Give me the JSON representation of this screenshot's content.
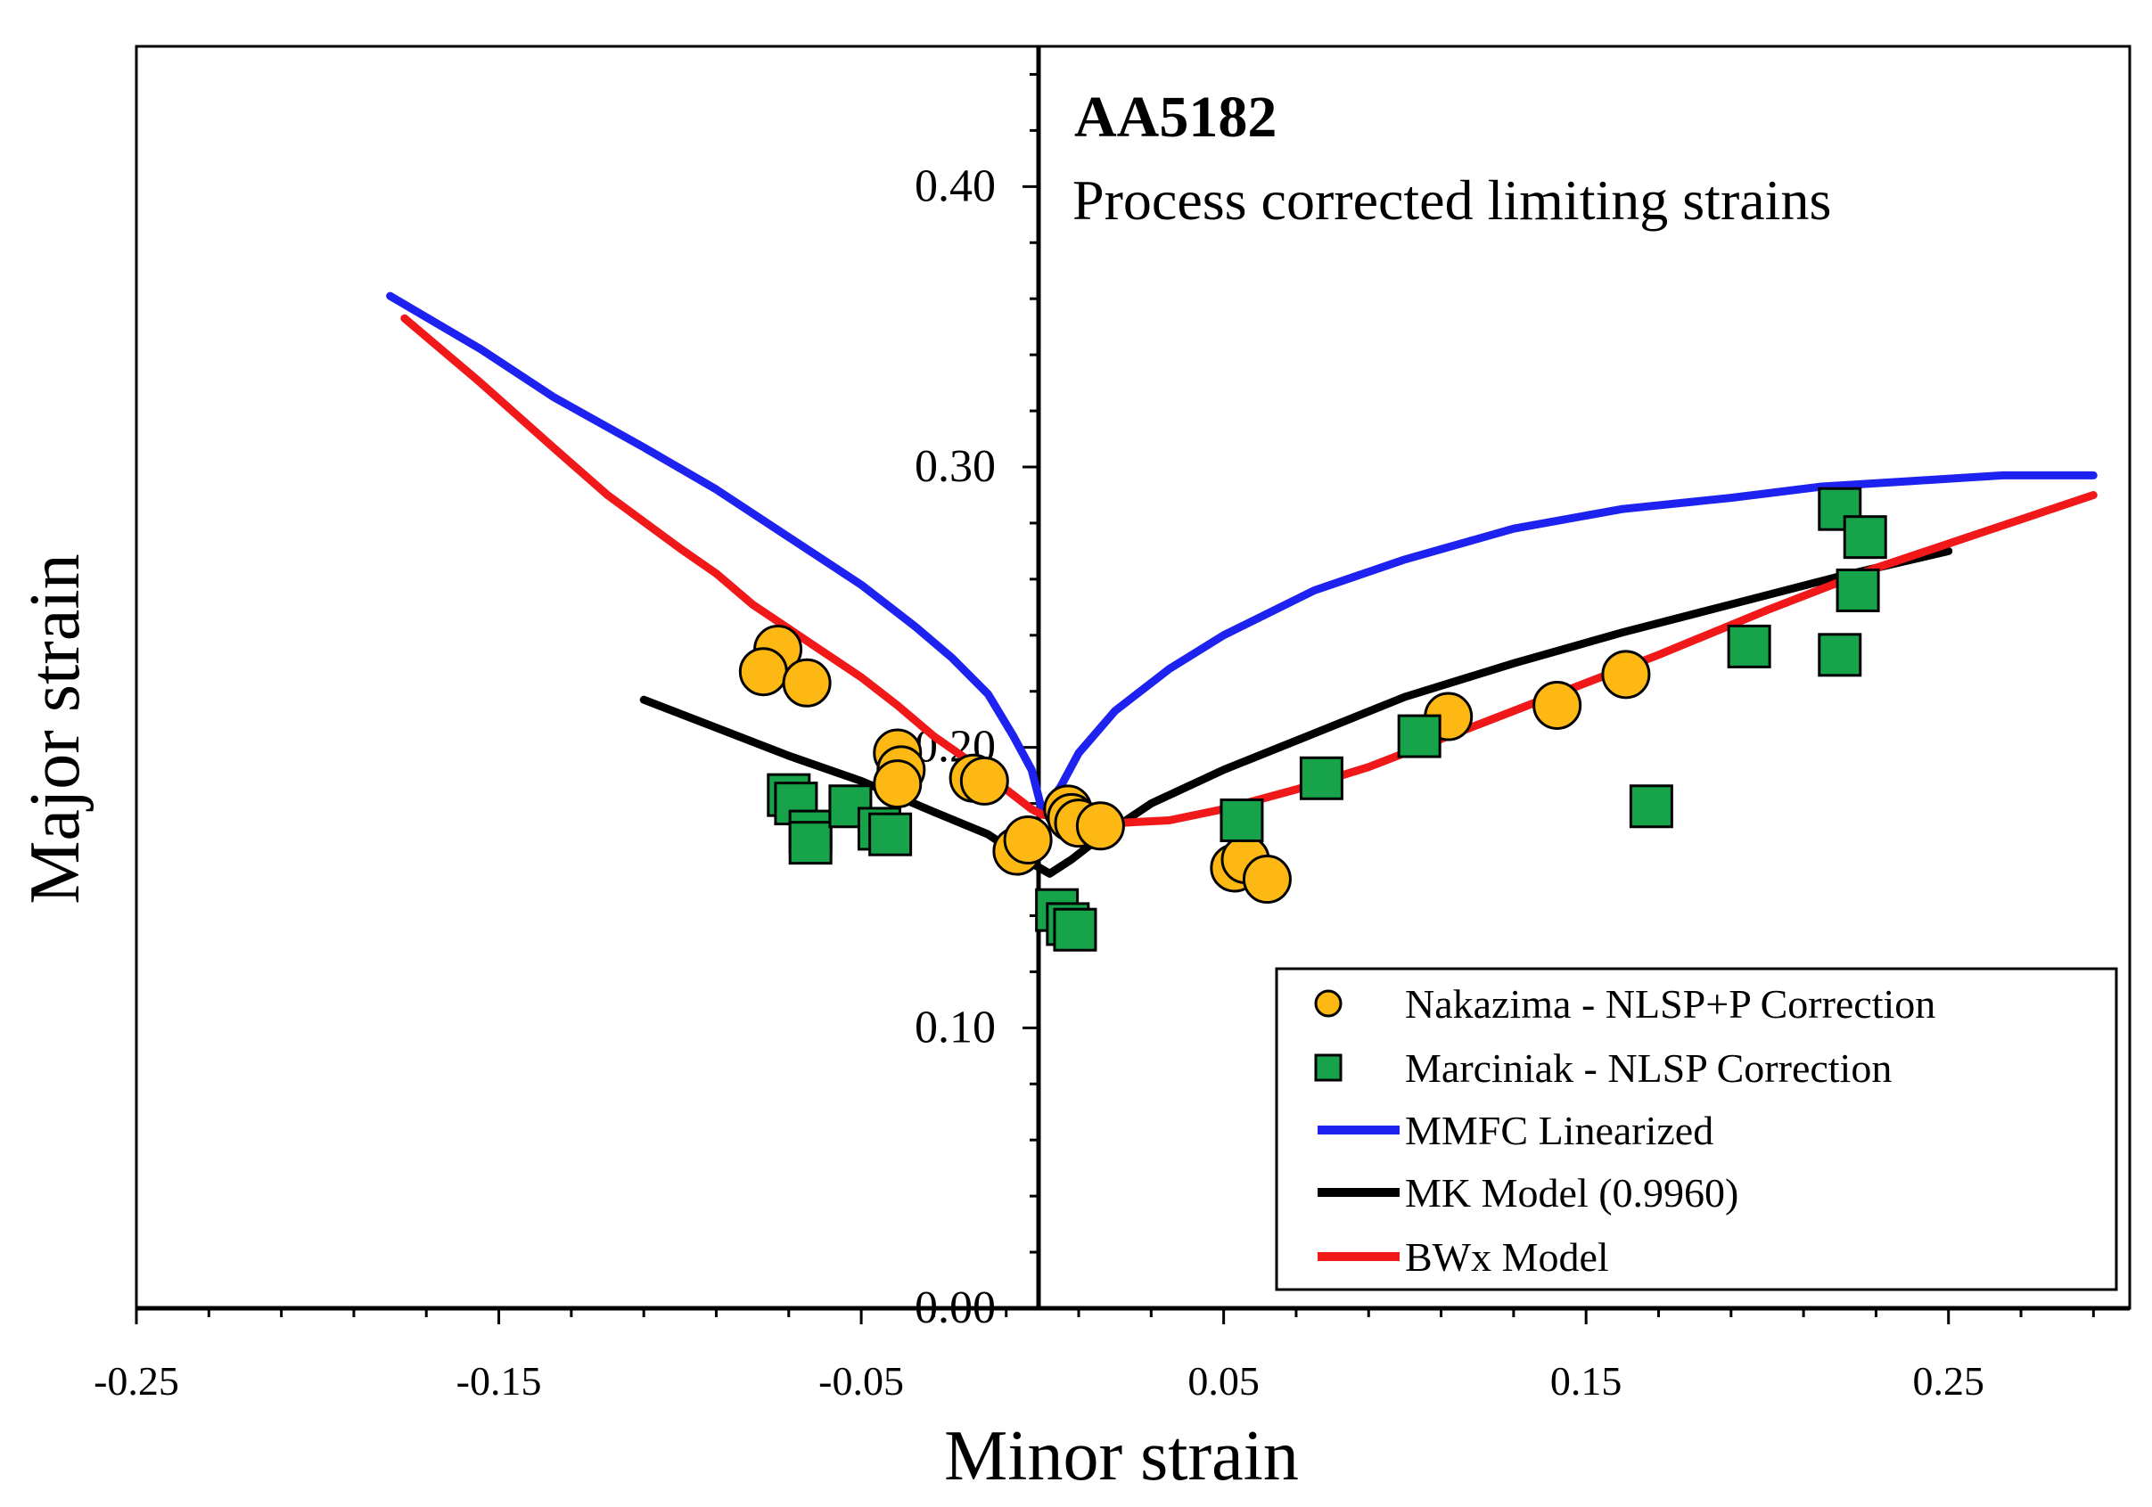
{
  "chart_data": {
    "type": "scatter",
    "title": "AA5182",
    "subtitle": "Process corrected limiting strains",
    "xlabel": "Minor strain",
    "ylabel": "Major strain",
    "xlim": [
      -0.25,
      0.3
    ],
    "ylim": [
      0.0,
      0.45
    ],
    "xticks": [
      -0.25,
      -0.15,
      -0.05,
      0.05,
      0.15,
      0.25
    ],
    "xtick_labels": [
      "-0.25",
      "-0.15",
      "-0.05",
      "0.05",
      "0.15",
      "0.25"
    ],
    "yticks": [
      0.0,
      0.1,
      0.2,
      0.3,
      0.4
    ],
    "ytick_labels": [
      "0.00",
      "0.10",
      "0.20",
      "0.30",
      "0.40"
    ],
    "grid": false,
    "legend_position": "bottom-right",
    "series": [
      {
        "name": "Nakazima - NLSP+P Correction",
        "kind": "scatter",
        "marker": "circle",
        "color": "#FDB813",
        "points": [
          [
            -0.073,
            0.235
          ],
          [
            -0.077,
            0.227
          ],
          [
            -0.065,
            0.223
          ],
          [
            -0.04,
            0.198
          ],
          [
            -0.039,
            0.192
          ],
          [
            -0.04,
            0.187
          ],
          [
            -0.019,
            0.189
          ],
          [
            -0.016,
            0.188
          ],
          [
            -0.007,
            0.163
          ],
          [
            -0.004,
            0.167
          ],
          [
            0.007,
            0.178
          ],
          [
            0.008,
            0.175
          ],
          [
            0.01,
            0.173
          ],
          [
            0.016,
            0.172
          ],
          [
            0.053,
            0.157
          ],
          [
            0.056,
            0.16
          ],
          [
            0.062,
            0.153
          ],
          [
            0.112,
            0.211
          ],
          [
            0.142,
            0.215
          ],
          [
            0.161,
            0.226
          ]
        ]
      },
      {
        "name": "Marciniak - NLSP Correction",
        "kind": "scatter",
        "marker": "square",
        "color": "#16A34A",
        "points": [
          [
            -0.07,
            0.183
          ],
          [
            -0.068,
            0.18
          ],
          [
            -0.064,
            0.17
          ],
          [
            -0.064,
            0.166
          ],
          [
            -0.053,
            0.179
          ],
          [
            -0.045,
            0.171
          ],
          [
            -0.042,
            0.169
          ],
          [
            0.004,
            0.142
          ],
          [
            0.007,
            0.137
          ],
          [
            0.009,
            0.135
          ],
          [
            0.055,
            0.174
          ],
          [
            0.077,
            0.189
          ],
          [
            0.104,
            0.204
          ],
          [
            0.168,
            0.179
          ],
          [
            0.195,
            0.236
          ],
          [
            0.22,
            0.285
          ],
          [
            0.22,
            0.233
          ],
          [
            0.225,
            0.256
          ],
          [
            0.227,
            0.275
          ]
        ]
      },
      {
        "name": "MMFC Linearized",
        "kind": "line",
        "color": "#1E22F0",
        "points": [
          [
            -0.18,
            0.361
          ],
          [
            -0.155,
            0.342
          ],
          [
            -0.135,
            0.325
          ],
          [
            -0.11,
            0.307
          ],
          [
            -0.09,
            0.292
          ],
          [
            -0.07,
            0.275
          ],
          [
            -0.05,
            0.258
          ],
          [
            -0.035,
            0.243
          ],
          [
            -0.025,
            0.232
          ],
          [
            -0.015,
            0.219
          ],
          [
            -0.008,
            0.204
          ],
          [
            -0.003,
            0.192
          ],
          [
            0.0,
            0.177
          ],
          [
            0.005,
            0.186
          ],
          [
            0.01,
            0.198
          ],
          [
            0.02,
            0.213
          ],
          [
            0.035,
            0.228
          ],
          [
            0.05,
            0.24
          ],
          [
            0.075,
            0.256
          ],
          [
            0.1,
            0.267
          ],
          [
            0.13,
            0.278
          ],
          [
            0.16,
            0.285
          ],
          [
            0.19,
            0.289
          ],
          [
            0.215,
            0.293
          ],
          [
            0.24,
            0.295
          ],
          [
            0.265,
            0.297
          ],
          [
            0.29,
            0.297
          ]
        ]
      },
      {
        "name": "MK Model (0.9960)",
        "kind": "line",
        "color": "#000000",
        "points": [
          [
            -0.11,
            0.217
          ],
          [
            -0.09,
            0.207
          ],
          [
            -0.07,
            0.197
          ],
          [
            -0.05,
            0.188
          ],
          [
            -0.03,
            0.177
          ],
          [
            -0.015,
            0.169
          ],
          [
            -0.008,
            0.163
          ],
          [
            -0.002,
            0.158
          ],
          [
            0.002,
            0.155
          ],
          [
            0.008,
            0.16
          ],
          [
            0.015,
            0.167
          ],
          [
            0.03,
            0.18
          ],
          [
            0.05,
            0.192
          ],
          [
            0.075,
            0.205
          ],
          [
            0.1,
            0.218
          ],
          [
            0.13,
            0.23
          ],
          [
            0.16,
            0.241
          ],
          [
            0.19,
            0.251
          ],
          [
            0.22,
            0.261
          ],
          [
            0.25,
            0.27
          ]
        ]
      },
      {
        "name": "BWx Model",
        "kind": "line",
        "color": "#F01818",
        "points": [
          [
            -0.176,
            0.353
          ],
          [
            -0.155,
            0.33
          ],
          [
            -0.135,
            0.307
          ],
          [
            -0.12,
            0.29
          ],
          [
            -0.1,
            0.271
          ],
          [
            -0.09,
            0.262
          ],
          [
            -0.08,
            0.251
          ],
          [
            -0.065,
            0.238
          ],
          [
            -0.05,
            0.225
          ],
          [
            -0.04,
            0.215
          ],
          [
            -0.03,
            0.204
          ],
          [
            -0.02,
            0.195
          ],
          [
            -0.01,
            0.185
          ],
          [
            -0.003,
            0.178
          ],
          [
            0.0,
            0.176
          ],
          [
            0.01,
            0.174
          ],
          [
            0.02,
            0.173
          ],
          [
            0.035,
            0.174
          ],
          [
            0.05,
            0.178
          ],
          [
            0.07,
            0.185
          ],
          [
            0.09,
            0.193
          ],
          [
            0.11,
            0.203
          ],
          [
            0.14,
            0.218
          ],
          [
            0.17,
            0.233
          ],
          [
            0.2,
            0.249
          ],
          [
            0.23,
            0.264
          ],
          [
            0.26,
            0.277
          ],
          [
            0.29,
            0.29
          ]
        ]
      }
    ]
  }
}
